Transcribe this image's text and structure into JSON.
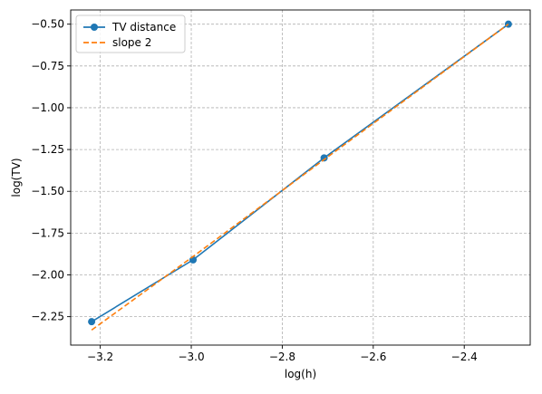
{
  "chart_data": {
    "type": "line",
    "xlabel": "log(h)",
    "ylabel": "log(TV)",
    "xlim": [
      -3.265,
      -2.255
    ],
    "ylim": [
      -2.42,
      -0.415
    ],
    "xticks": [
      -3.2,
      -3.0,
      -2.8,
      -2.6,
      -2.4
    ],
    "yticks": [
      -2.25,
      -2.0,
      -1.75,
      -1.5,
      -1.25,
      -1.0,
      -0.75,
      -0.5
    ],
    "xtick_labels": [
      "−3.2",
      "−3.0",
      "−2.8",
      "−2.6",
      "−2.4"
    ],
    "ytick_labels": [
      "−2.25",
      "−2.00",
      "−1.75",
      "−1.50",
      "−1.25",
      "−1.00",
      "−0.75",
      "−0.50"
    ],
    "grid": true,
    "legend_position": "top-left",
    "series": [
      {
        "name": "TV distance",
        "color": "#1f77b4",
        "style": "solid",
        "marker": "circle",
        "x": [
          -3.219,
          -2.996,
          -2.708,
          -2.303
        ],
        "y": [
          -2.28,
          -1.91,
          -1.3,
          -0.5
        ]
      },
      {
        "name": "slope 2",
        "color": "#ff7f0e",
        "style": "dashed",
        "marker": "none",
        "x": [
          -3.219,
          -2.996,
          -2.708,
          -2.303
        ],
        "y": [
          -2.33,
          -1.89,
          -1.31,
          -0.5
        ]
      }
    ]
  }
}
